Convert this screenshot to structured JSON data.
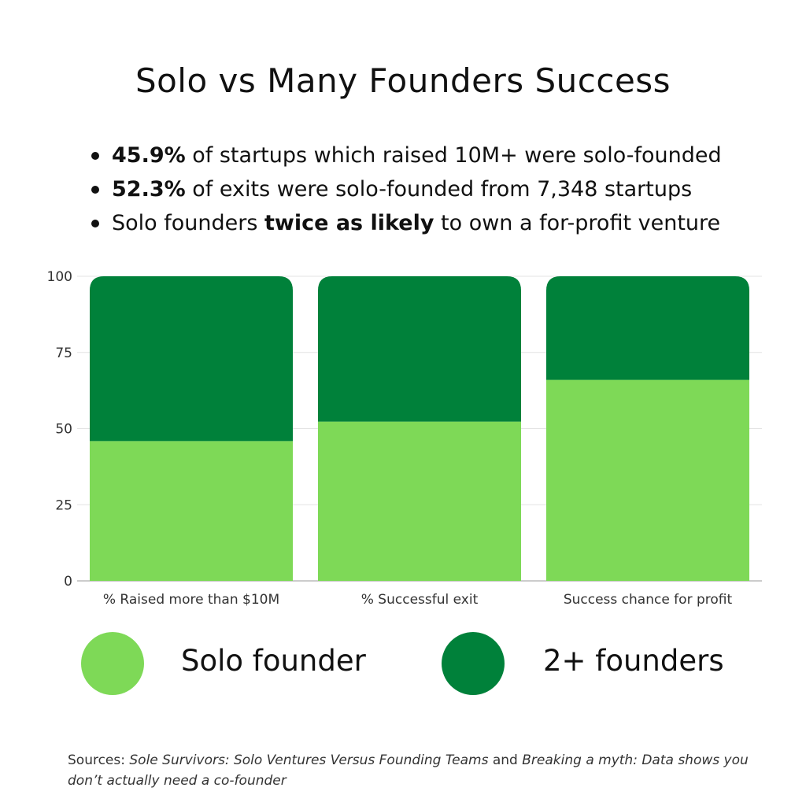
{
  "title": "Solo vs Many Founders Success",
  "bullets": [
    {
      "bold": "45.9%",
      "text": " of startups which raised 10M+ were solo-founded"
    },
    {
      "bold": "52.3%",
      "text": " of exits were solo-founded from 7,348 startups"
    },
    {
      "pre": "Solo founders ",
      "bold": "twice as likely",
      "text": " to own a for-profit venture"
    }
  ],
  "chart_data": {
    "type": "bar",
    "stacked": true,
    "title": "",
    "xlabel": "",
    "ylabel": "",
    "ylim": [
      0,
      100
    ],
    "yticks": [
      0,
      25,
      50,
      75,
      100
    ],
    "grid": true,
    "categories": [
      "% Raised more than $10M",
      "% Successful exit",
      "Success chance for profit"
    ],
    "series": [
      {
        "name": "Solo founder",
        "color": "#7ED957",
        "values": [
          45.9,
          52.3,
          66
        ]
      },
      {
        "name": "2+ founders",
        "color": "#00813A",
        "values": [
          54.1,
          47.7,
          34
        ]
      }
    ]
  },
  "legend": [
    {
      "label": "Solo founder",
      "color": "#7ED957"
    },
    {
      "label": "2+ founders",
      "color": "#00813A"
    }
  ],
  "sources": {
    "prefix": "Sources: ",
    "source1": "Sole Survivors: Solo Ventures Versus Founding Teams",
    "and": " and ",
    "source2": "Breaking a myth: Data shows you don’t actually need a co-founder"
  }
}
